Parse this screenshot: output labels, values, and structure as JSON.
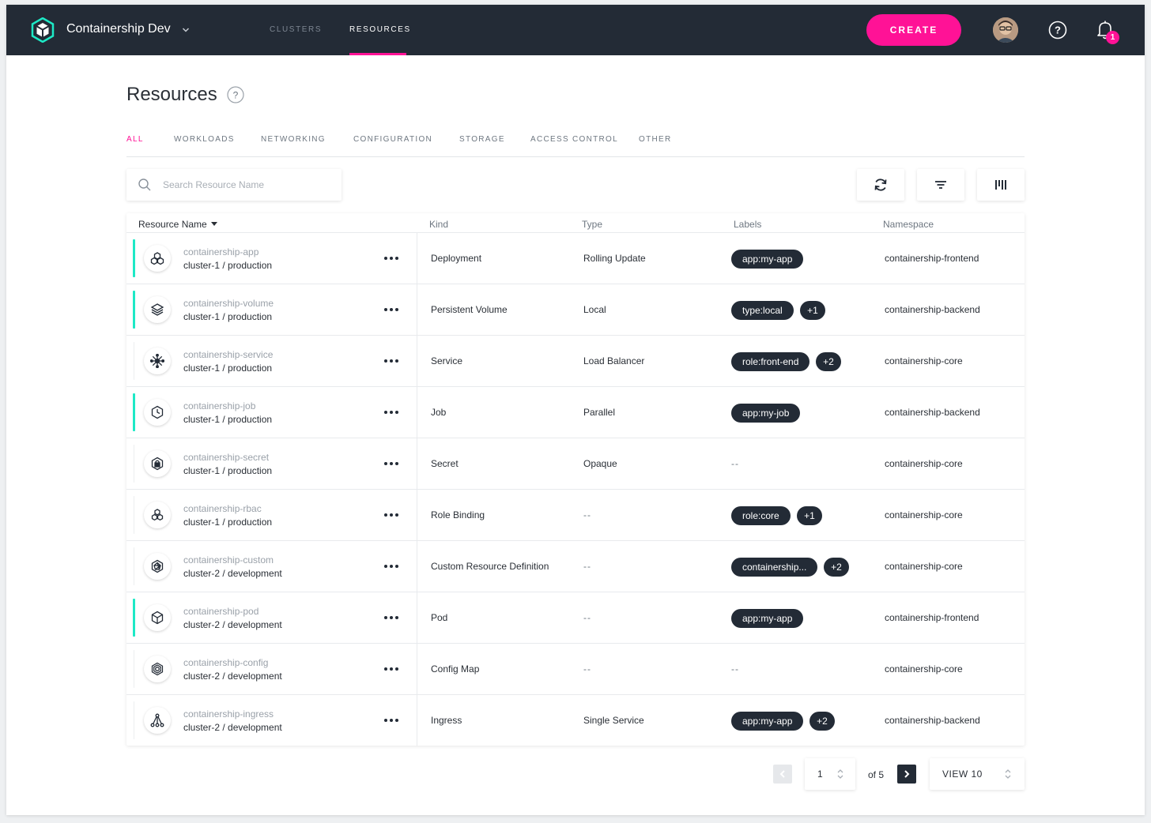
{
  "header": {
    "app_title": "Containership Dev",
    "nav": [
      {
        "label": "CLUSTERS",
        "active": false
      },
      {
        "label": "RESOURCES",
        "active": true
      }
    ],
    "create_label": "CREATE",
    "notification_count": "1",
    "accent_color": "#ff1296",
    "bar_color": "#232b36"
  },
  "page": {
    "title": "Resources",
    "tabs": [
      "ALL",
      "WORKLOADS",
      "NETWORKING",
      "CONFIGURATION",
      "STORAGE",
      "ACCESS CONTROL",
      "OTHER"
    ],
    "active_tab": "ALL",
    "search_placeholder": "Search Resource Name"
  },
  "table": {
    "columns": {
      "name": "Resource Name",
      "kind": "Kind",
      "type": "Type",
      "labels": "Labels",
      "namespace": "Namespace"
    },
    "rows": [
      {
        "name": "containership-app",
        "cluster": "cluster-1 / production",
        "kind": "Deployment",
        "type": "Rolling Update",
        "label": "app:my-app",
        "extra": "",
        "namespace": "containership-frontend",
        "active": true,
        "icon": "deployment-icon"
      },
      {
        "name": "containership-volume",
        "cluster": "cluster-1 / production",
        "kind": "Persistent Volume",
        "type": "Local",
        "label": "type:local",
        "extra": "+1",
        "namespace": "containership-backend",
        "active": true,
        "icon": "volume-icon"
      },
      {
        "name": "containership-service",
        "cluster": "cluster-1 / production",
        "kind": "Service",
        "type": "Load Balancer",
        "label": "role:front-end",
        "extra": "+2",
        "namespace": "containership-core",
        "active": false,
        "icon": "service-icon"
      },
      {
        "name": "containership-job",
        "cluster": "cluster-1 / production",
        "kind": "Job",
        "type": "Parallel",
        "label": "app:my-job",
        "extra": "",
        "namespace": "containership-backend",
        "active": true,
        "icon": "job-clock-icon"
      },
      {
        "name": "containership-secret",
        "cluster": "cluster-1 / production",
        "kind": "Secret",
        "type": "Opaque",
        "label": "",
        "extra": "",
        "namespace": "containership-core",
        "active": false,
        "icon": "secret-lock-icon"
      },
      {
        "name": "containership-rbac",
        "cluster": "cluster-1 / production",
        "kind": "Role Binding",
        "type": "",
        "label": "role:core",
        "extra": "+1",
        "namespace": "containership-core",
        "active": false,
        "icon": "role-binding-icon"
      },
      {
        "name": "containership-custom",
        "cluster": "cluster-2 / development",
        "kind": "Custom Resource Definition",
        "type": "",
        "label": "containership...",
        "extra": "+2",
        "namespace": "containership-core",
        "active": false,
        "icon": "custom-resource-icon"
      },
      {
        "name": "containership-pod",
        "cluster": "cluster-2 / development",
        "kind": "Pod",
        "type": "",
        "label": "app:my-app",
        "extra": "",
        "namespace": "containership-frontend",
        "active": true,
        "icon": "pod-cube-icon"
      },
      {
        "name": "containership-config",
        "cluster": "cluster-2 / development",
        "kind": "Config Map",
        "type": "",
        "label": "",
        "extra": "",
        "namespace": "containership-core",
        "active": false,
        "icon": "config-map-icon"
      },
      {
        "name": "containership-ingress",
        "cluster": "cluster-2 / development",
        "kind": "Ingress",
        "type": "Single Service",
        "label": "app:my-app",
        "extra": "+2",
        "namespace": "containership-backend",
        "active": false,
        "icon": "ingress-icon"
      }
    ],
    "empty_text": "--",
    "status_color": "#1de9c6"
  },
  "pagination": {
    "page": "1",
    "of_text": "of 5",
    "view_text": "VIEW 10"
  }
}
